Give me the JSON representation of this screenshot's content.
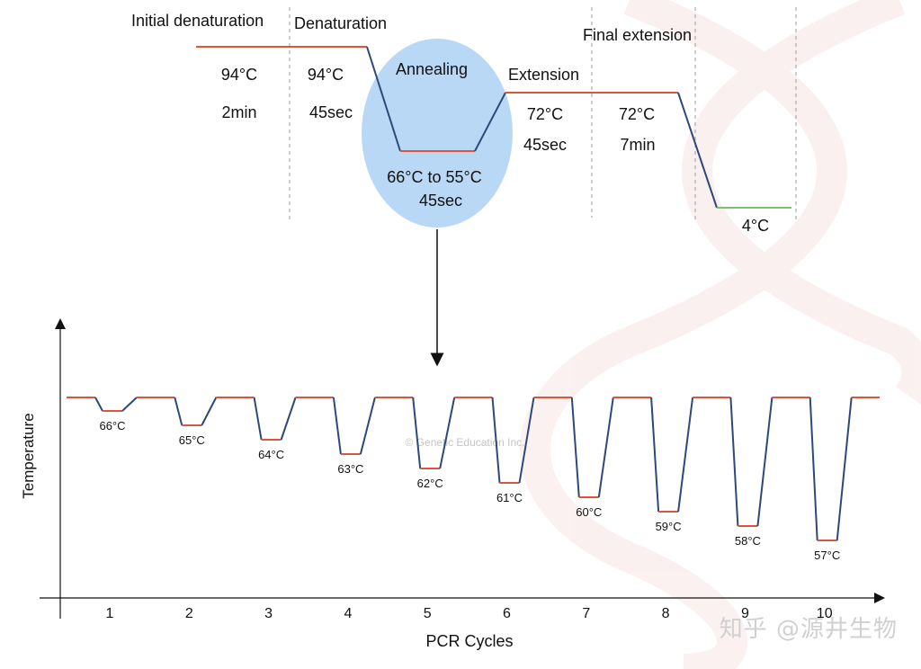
{
  "colors": {
    "hold_line": "#e0553a",
    "ramp_line": "#2b4a7a",
    "final_hold": "#7cc26a",
    "annealing_ellipse": "#b9d8f5",
    "divider": "#aaaaaa"
  },
  "protocol": {
    "steps": [
      {
        "name": "Initial denaturation",
        "temp": "94°C",
        "time": "2min"
      },
      {
        "name": "Denaturation",
        "temp": "94°C",
        "time": "45sec"
      },
      {
        "name": "Annealing",
        "temp": "66°C to 55°C",
        "time": "45sec"
      },
      {
        "name": "Extension",
        "temp": "72°C",
        "time": "45sec"
      },
      {
        "name": "Final extension",
        "temp": "72°C",
        "time": "7min"
      },
      {
        "name": "",
        "temp": "4°C",
        "time": ""
      }
    ]
  },
  "chart_data": {
    "type": "line",
    "xlabel": "PCR Cycles",
    "ylabel": "Temperature",
    "cycles": [
      1,
      2,
      3,
      4,
      5,
      6,
      7,
      8,
      9,
      10
    ],
    "annealing_temps_c": [
      66,
      65,
      64,
      63,
      62,
      61,
      60,
      59,
      58,
      57
    ],
    "annealing_labels": [
      "66°C",
      "65°C",
      "64°C",
      "63°C",
      "62°C",
      "61°C",
      "60°C",
      "59°C",
      "58°C",
      "57°C"
    ]
  },
  "credit": "© Genetic Education Inc.",
  "watermark": "知乎 @源井生物"
}
